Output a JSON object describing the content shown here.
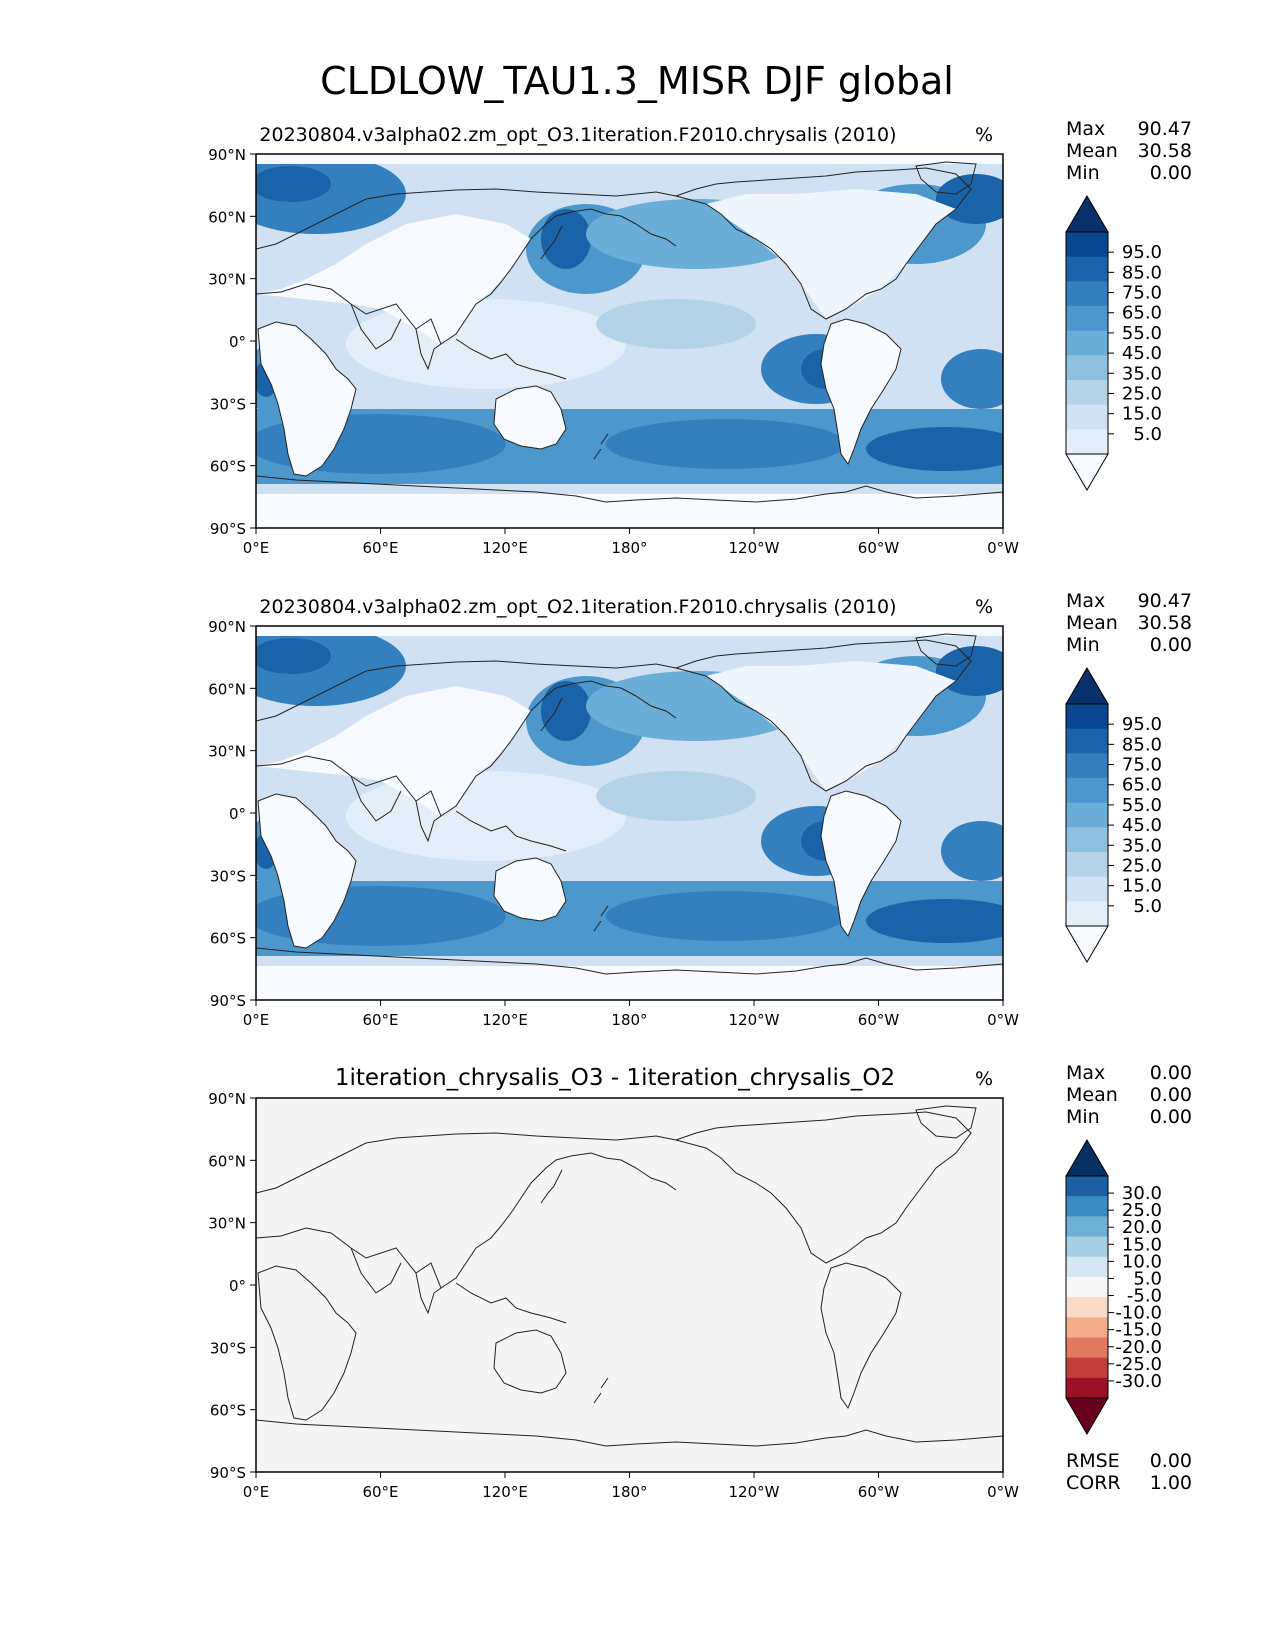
{
  "title": "CLDLOW_TAU1.3_MISR DJF global",
  "units": "%",
  "lat_ticks": [
    "90°N",
    "60°N",
    "30°N",
    "0°",
    "30°S",
    "60°S",
    "90°S"
  ],
  "lon_ticks": [
    "0°E",
    "60°E",
    "120°E",
    "180°",
    "120°W",
    "60°W",
    "0°W"
  ],
  "stat_labels": {
    "max": "Max",
    "mean": "Mean",
    "min": "Min",
    "rmse": "RMSE",
    "corr": "CORR"
  },
  "panels": [
    {
      "subtitle": "20230804.v3alpha02.zm_opt_O3.1iteration.F2010.chrysalis (2010)",
      "stats": {
        "max": "90.47",
        "mean": "30.58",
        "min": "0.00"
      },
      "colorbar": {
        "labels": [
          "95.0",
          "85.0",
          "75.0",
          "65.0",
          "55.0",
          "45.0",
          "35.0",
          "25.0",
          "15.0",
          "5.0"
        ],
        "colors": [
          "#08306b",
          "#08468f",
          "#1b63a8",
          "#3480bf",
          "#4c97cc",
          "#6aadd6",
          "#8fc1de",
          "#b4d3e9",
          "#cfe1f2",
          "#e3eef9",
          "#f7fbff"
        ]
      }
    },
    {
      "subtitle": "20230804.v3alpha02.zm_opt_O2.1iteration.F2010.chrysalis (2010)",
      "stats": {
        "max": "90.47",
        "mean": "30.58",
        "min": "0.00"
      },
      "colorbar": {
        "labels": [
          "95.0",
          "85.0",
          "75.0",
          "65.0",
          "55.0",
          "45.0",
          "35.0",
          "25.0",
          "15.0",
          "5.0"
        ],
        "colors": [
          "#08306b",
          "#08468f",
          "#1b63a8",
          "#3480bf",
          "#4c97cc",
          "#6aadd6",
          "#8fc1de",
          "#b4d3e9",
          "#cfe1f2",
          "#e3eef9",
          "#f7fbff"
        ]
      }
    },
    {
      "subtitle": "1iteration_chrysalis_O3 - 1iteration_chrysalis_O2",
      "stats": {
        "max": "0.00",
        "mean": "0.00",
        "min": "0.00"
      },
      "extra_stats": {
        "rmse": "0.00",
        "corr": "1.00"
      },
      "colorbar": {
        "labels": [
          "30.0",
          "25.0",
          "20.0",
          "15.0",
          "10.0",
          "5.0",
          "-5.0",
          "-10.0",
          "-15.0",
          "-20.0",
          "-25.0",
          "-30.0"
        ],
        "colors": [
          "#053061",
          "#1d5fa2",
          "#3a8bc2",
          "#6eaed2",
          "#a7cfe4",
          "#d5e7f1",
          "#f7f7f7",
          "#fbdbc8",
          "#f4ad8c",
          "#e17860",
          "#c13e3d",
          "#9c1127",
          "#67001f"
        ]
      }
    }
  ]
}
